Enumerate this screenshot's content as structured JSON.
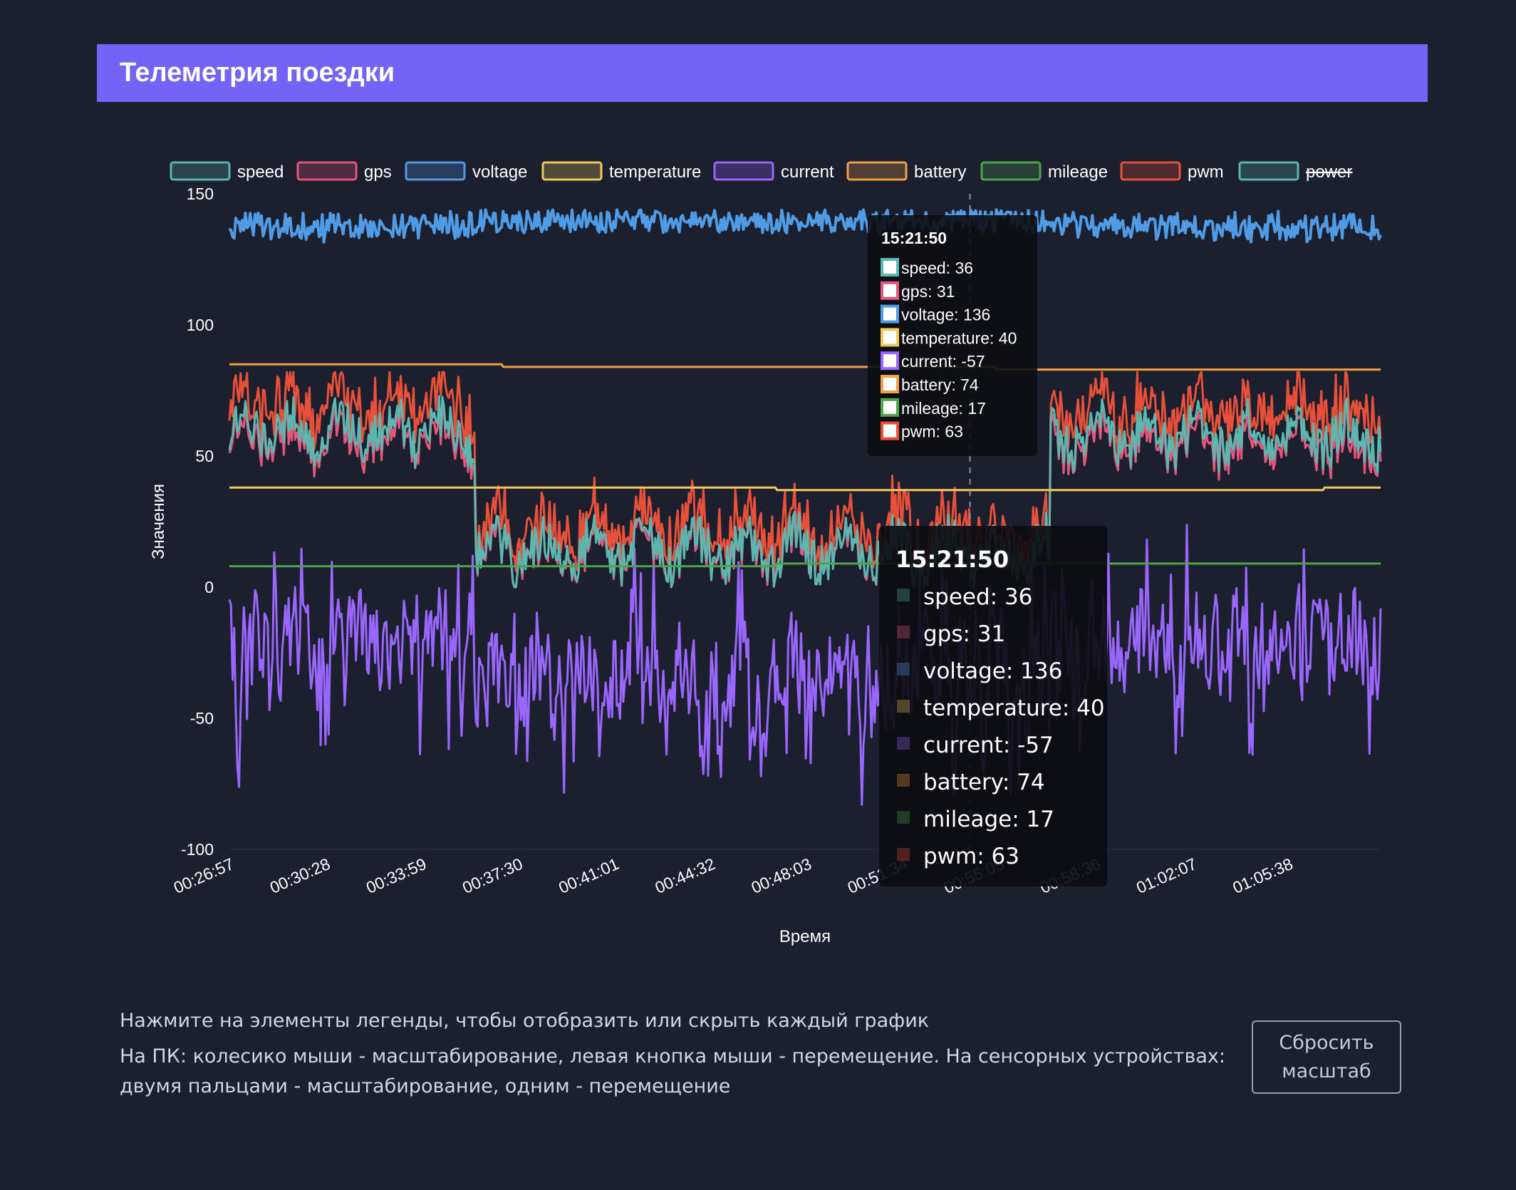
{
  "header": {
    "title": "Телеметрия поездки"
  },
  "chart_data": {
    "type": "line",
    "xlabel": "Время",
    "ylabel": "Значения",
    "ylim": [
      -100,
      150
    ],
    "yticks": [
      150,
      100,
      50,
      0,
      -50,
      -100
    ],
    "xlim": [
      "00:26:57",
      "01:09:00"
    ],
    "xticks": [
      "00:26:57",
      "00:30:28",
      "00:33:59",
      "00:37:30",
      "00:41:01",
      "00:44:32",
      "00:48:03",
      "00:51:34",
      "00:55:05",
      "00:58:36",
      "01:02:07",
      "01:05:38"
    ],
    "legend_position": "top",
    "grid": false,
    "series": [
      {
        "name": "speed",
        "color": "#5ab8b0",
        "hidden": false
      },
      {
        "name": "gps",
        "color": "#e5567a",
        "hidden": false
      },
      {
        "name": "voltage",
        "color": "#4f9be6",
        "hidden": false
      },
      {
        "name": "temperature",
        "color": "#f2c85b",
        "hidden": false
      },
      {
        "name": "current",
        "color": "#9966ff",
        "hidden": false
      },
      {
        "name": "battery",
        "color": "#f0a046",
        "hidden": false
      },
      {
        "name": "mileage",
        "color": "#4ea44d",
        "hidden": false
      },
      {
        "name": "pwm",
        "color": "#e8503a",
        "hidden": false
      },
      {
        "name": "power",
        "color": "#5ab8b0",
        "hidden": true
      }
    ],
    "hover_time": "00:54:00",
    "tooltip": {
      "title": "15:21:50",
      "items": [
        {
          "series": "speed",
          "text": "speed: 36"
        },
        {
          "series": "gps",
          "text": "gps: 31"
        },
        {
          "series": "voltage",
          "text": "voltage: 136"
        },
        {
          "series": "temperature",
          "text": "temperature: 40"
        },
        {
          "series": "current",
          "text": "current: -57"
        },
        {
          "series": "battery",
          "text": "battery: 74"
        },
        {
          "series": "mileage",
          "text": "mileage: 17"
        },
        {
          "series": "pwm",
          "text": "pwm: 63"
        }
      ]
    }
  },
  "footer": {
    "hint_legend": "Нажмите на элементы легенды, чтобы отобразить или скрыть каждый график",
    "hint_controls": "На ПК: колесико мыши - масштабирование, левая кнопка мыши - перемещение. На сенсорных устройствах: двумя пальцами - масштабирование, одним - перемещение",
    "reset_label": "Сбросить масштаб"
  }
}
